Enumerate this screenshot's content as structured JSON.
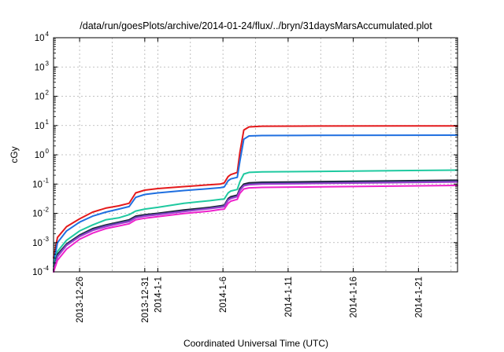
{
  "chart_data": {
    "type": "line",
    "title": "/data/run/goesPlots/archive/2014-01-24/flux/../bryn/31daysMarsAccumulated.plot",
    "xlabel": "Coordinated Universal Time (UTC)",
    "ylabel": "cGy",
    "yscale": "log",
    "ylim": [
      0.0001,
      10000
    ],
    "xlim": [
      "2013-12-24",
      "2014-01-24"
    ],
    "grid": true,
    "y_ticks": [
      {
        "base": "10",
        "exp": "-4",
        "value": 0.0001
      },
      {
        "base": "10",
        "exp": "-3",
        "value": 0.001
      },
      {
        "base": "10",
        "exp": "-2",
        "value": 0.01
      },
      {
        "base": "10",
        "exp": "-1",
        "value": 0.1
      },
      {
        "base": "10",
        "exp": "0",
        "value": 1
      },
      {
        "base": "10",
        "exp": "1",
        "value": 10
      },
      {
        "base": "10",
        "exp": "2",
        "value": 100
      },
      {
        "base": "10",
        "exp": "3",
        "value": 1000
      },
      {
        "base": "10",
        "exp": "4",
        "value": 10000
      }
    ],
    "x_ticks": [
      {
        "day": 2,
        "label": "2013-12-26"
      },
      {
        "day": 7,
        "label": "2013-12-31"
      },
      {
        "day": 8,
        "label": "2014-1-1"
      },
      {
        "day": 13,
        "label": "2014-1-6"
      },
      {
        "day": 18,
        "label": "2014-1-11"
      },
      {
        "day": 23,
        "label": "2014-1-16"
      },
      {
        "day": 28,
        "label": "2014-1-21"
      }
    ],
    "x_grid_days": [
      2,
      4.5,
      7,
      8,
      10.5,
      13,
      15.5,
      18,
      20.5,
      23,
      25.5,
      28,
      30.5
    ],
    "series": [
      {
        "color": "#e41a1c",
        "x": [
          0,
          0.3,
          1,
          2,
          3,
          4,
          5,
          5.8,
          6.3,
          7,
          8,
          10,
          12,
          12.8,
          13.1,
          13.4,
          13.6,
          14.1,
          14.3,
          14.6,
          15,
          16,
          20,
          31
        ],
        "y": [
          0.0003,
          0.0015,
          0.0035,
          0.0065,
          0.011,
          0.015,
          0.018,
          0.022,
          0.05,
          0.062,
          0.07,
          0.082,
          0.095,
          0.1,
          0.11,
          0.18,
          0.21,
          0.25,
          1.2,
          7.0,
          9.0,
          9.5,
          9.6,
          9.7
        ]
      },
      {
        "color": "#1f6fe0",
        "x": [
          0,
          0.3,
          1,
          2,
          3,
          4,
          5,
          5.8,
          6.3,
          7,
          8,
          10,
          12,
          12.8,
          13.1,
          13.4,
          13.6,
          14.1,
          14.3,
          14.6,
          15,
          16,
          20,
          31
        ],
        "y": [
          0.0002,
          0.001,
          0.0025,
          0.005,
          0.008,
          0.011,
          0.014,
          0.017,
          0.035,
          0.044,
          0.05,
          0.06,
          0.07,
          0.075,
          0.08,
          0.13,
          0.15,
          0.17,
          0.6,
          3.4,
          4.4,
          4.55,
          4.6,
          4.7
        ]
      },
      {
        "color": "#1fc9a0",
        "x": [
          0,
          0.3,
          1,
          2,
          3,
          4,
          5,
          5.8,
          6.3,
          7,
          8,
          10,
          12,
          12.8,
          13.1,
          13.4,
          13.6,
          14.1,
          14.3,
          14.6,
          15,
          16,
          20,
          31
        ],
        "y": [
          0.00015,
          0.0005,
          0.0012,
          0.0025,
          0.004,
          0.006,
          0.007,
          0.009,
          0.012,
          0.014,
          0.016,
          0.022,
          0.027,
          0.03,
          0.031,
          0.05,
          0.058,
          0.065,
          0.12,
          0.22,
          0.25,
          0.26,
          0.27,
          0.3
        ]
      },
      {
        "color": "#1a1a2e",
        "x": [
          0,
          0.3,
          1,
          2,
          3,
          4,
          5,
          5.8,
          6.3,
          7,
          8,
          10,
          12,
          12.8,
          13.1,
          13.4,
          13.6,
          14.1,
          14.3,
          14.6,
          15,
          16,
          20,
          31
        ],
        "y": [
          0.00012,
          0.0004,
          0.0009,
          0.0018,
          0.003,
          0.004,
          0.005,
          0.006,
          0.008,
          0.009,
          0.01,
          0.013,
          0.016,
          0.018,
          0.019,
          0.032,
          0.037,
          0.042,
          0.07,
          0.1,
          0.11,
          0.115,
          0.12,
          0.135
        ]
      },
      {
        "color": "#3a4a8a",
        "x": [
          0,
          0.3,
          1,
          2,
          3,
          4,
          5,
          5.8,
          6.3,
          7,
          8,
          10,
          12,
          12.8,
          13.1,
          13.4,
          13.6,
          14.1,
          14.3,
          14.6,
          15,
          16,
          20,
          31
        ],
        "y": [
          0.00011,
          0.00036,
          0.00085,
          0.0017,
          0.0028,
          0.0038,
          0.0047,
          0.0056,
          0.0074,
          0.0084,
          0.0094,
          0.012,
          0.015,
          0.017,
          0.018,
          0.03,
          0.034,
          0.039,
          0.064,
          0.092,
          0.1,
          0.106,
          0.11,
          0.125
        ]
      },
      {
        "color": "#9b3fcf",
        "x": [
          0,
          0.3,
          1,
          2,
          3,
          4,
          5,
          5.8,
          6.3,
          7,
          8,
          10,
          12,
          12.8,
          13.1,
          13.4,
          13.6,
          14.1,
          14.3,
          14.6,
          15,
          16,
          20,
          31
        ],
        "y": [
          0.0001,
          0.00033,
          0.0008,
          0.0016,
          0.0026,
          0.0035,
          0.0044,
          0.0052,
          0.007,
          0.008,
          0.009,
          0.0115,
          0.0145,
          0.016,
          0.017,
          0.028,
          0.032,
          0.037,
          0.06,
          0.087,
          0.095,
          0.1,
          0.105,
          0.118
        ]
      },
      {
        "color": "#ee22cc",
        "x": [
          0,
          0.3,
          1,
          2,
          3,
          4,
          5,
          5.8,
          6.3,
          7,
          8,
          10,
          12,
          12.8,
          13.1,
          13.4,
          13.6,
          14.1,
          14.3,
          14.6,
          15,
          16,
          20,
          31
        ],
        "y": [
          0.0001,
          0.00025,
          0.0006,
          0.0013,
          0.0021,
          0.003,
          0.0037,
          0.0044,
          0.006,
          0.0068,
          0.0077,
          0.0098,
          0.012,
          0.0135,
          0.014,
          0.022,
          0.026,
          0.03,
          0.048,
          0.068,
          0.074,
          0.077,
          0.08,
          0.09
        ]
      }
    ]
  }
}
